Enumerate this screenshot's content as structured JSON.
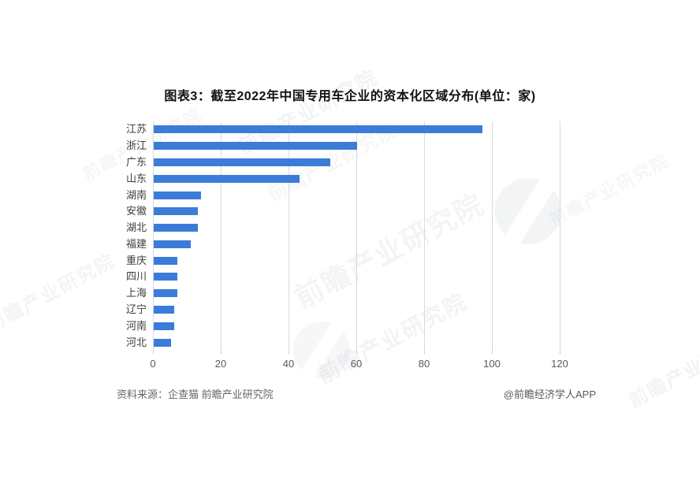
{
  "title": "图表3：截至2022年中国专用车企业的资本化区域分布(单位：家)",
  "footer": {
    "source": "资料来源：企查猫 前瞻产业研究院",
    "credit": "@前瞻经济学人APP"
  },
  "watermark": {
    "text": "前瞻产业研究院",
    "logo": "qianzhan-circle-logo"
  },
  "colors": {
    "bar": "#3c7cd9",
    "grid": "#d9d9d9",
    "tick_label": "#595959",
    "category_label": "#3d3d3d",
    "title": "#111111",
    "footer": "#666666",
    "background": "#ffffff"
  },
  "chart_data": {
    "type": "bar",
    "orientation": "horizontal",
    "title": "图表3：截至2022年中国专用车企业的资本化区域分布(单位：家)",
    "categories": [
      "江苏",
      "浙江",
      "广东",
      "山东",
      "湖南",
      "安徽",
      "湖北",
      "福建",
      "重庆",
      "四川",
      "上海",
      "辽宁",
      "河南",
      "河北"
    ],
    "values": [
      97,
      60,
      52,
      43,
      14,
      13,
      13,
      11,
      7,
      7,
      7,
      6,
      6,
      5
    ],
    "unit": "家",
    "xlabel": "",
    "ylabel": "",
    "xlim": [
      0,
      130
    ],
    "xticks": [
      0,
      20,
      40,
      60,
      80,
      100,
      120
    ],
    "grid": true,
    "legend": false
  }
}
